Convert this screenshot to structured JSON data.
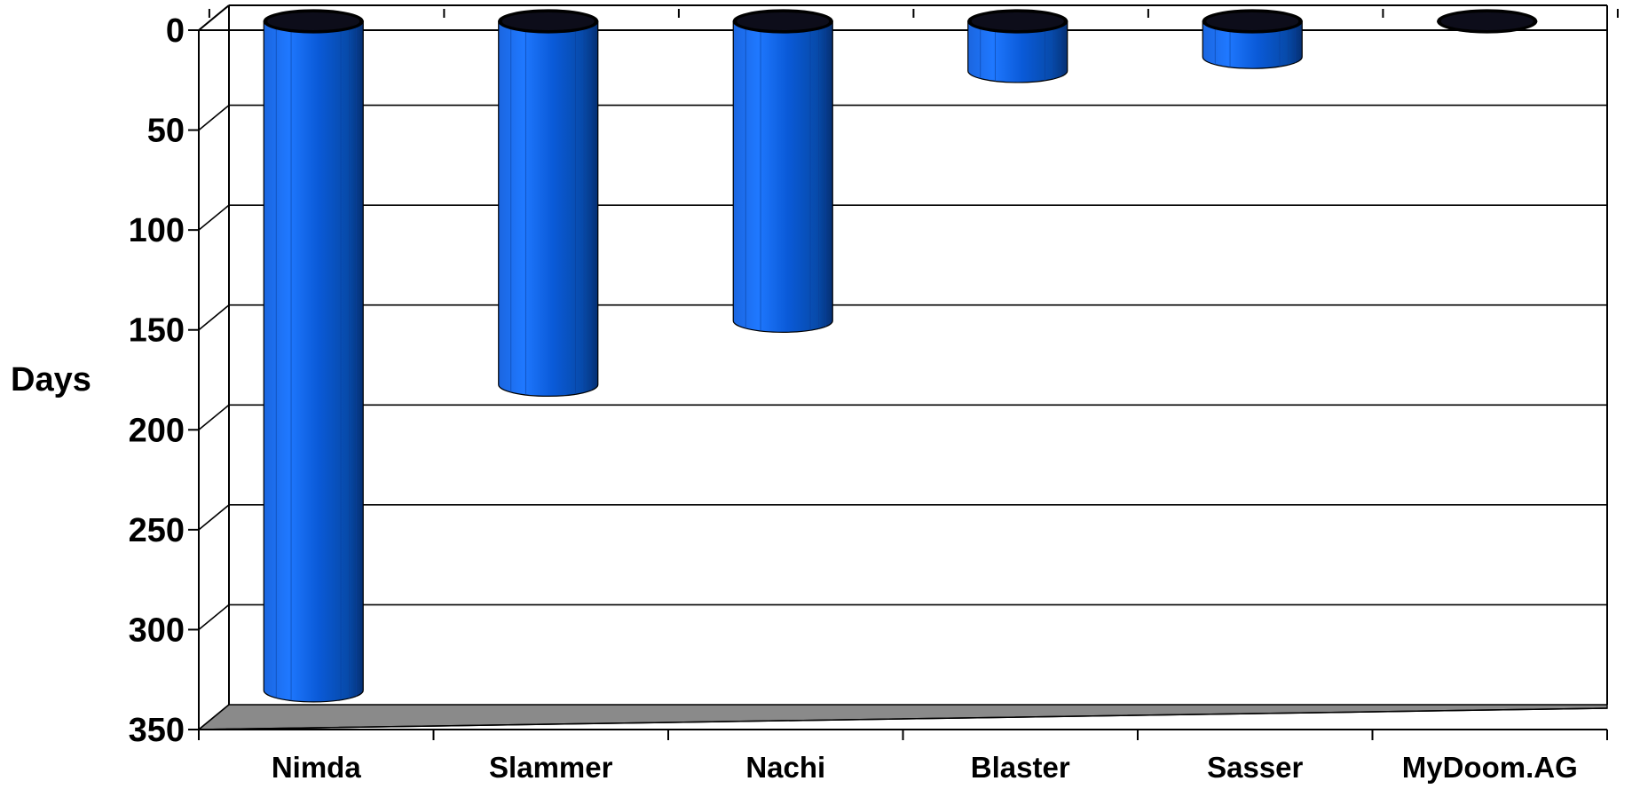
{
  "chart_data": {
    "type": "bar",
    "style": "3d-cylinder",
    "orientation": "values-downward",
    "categories": [
      "Nimda",
      "Slammer",
      "Nachi",
      "Blaster",
      "Sasser",
      "MyDoom.AG"
    ],
    "values": [
      336,
      183,
      151,
      26,
      19,
      1
    ],
    "title": "",
    "xlabel": "",
    "ylabel": "Days",
    "ylim": [
      0,
      350
    ],
    "yticks": [
      "0",
      "50",
      "100",
      "150",
      "200",
      "250",
      "300",
      "350"
    ],
    "grid": true,
    "legend": "none",
    "colors": {
      "bar_light": "#1f78ff",
      "bar_mid": "#0a5ad8",
      "bar_dark": "#06357f",
      "bar_cap": "#000000",
      "floor": "#8a8a8a",
      "grid": "#000000",
      "background": "#ffffff"
    }
  }
}
